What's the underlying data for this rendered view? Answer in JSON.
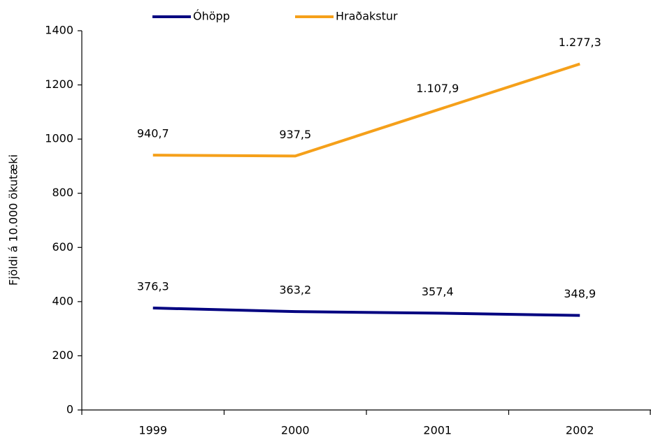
{
  "chart_data": {
    "type": "line",
    "ylabel": "Fjöldi á 10.000 ökutæki",
    "categories": [
      "1999",
      "2000",
      "2001",
      "2002"
    ],
    "series": [
      {
        "name": "Óhöpp",
        "color": "#000080",
        "values": [
          376.3,
          363.2,
          357.4,
          348.9
        ],
        "value_labels": [
          "376,3",
          "363,2",
          "357,4",
          "348,9"
        ]
      },
      {
        "name": "Hraðakstur",
        "color": "#f5a01a",
        "values": [
          940.7,
          937.5,
          1107.9,
          1277.3
        ],
        "value_labels": [
          "940,7",
          "937,5",
          "1.107,9",
          "1.277,3"
        ]
      }
    ],
    "ylim": [
      0,
      1400
    ],
    "yticks": [
      0,
      200,
      400,
      600,
      800,
      1000,
      1200,
      1400
    ],
    "grid": false,
    "legend": "top"
  }
}
